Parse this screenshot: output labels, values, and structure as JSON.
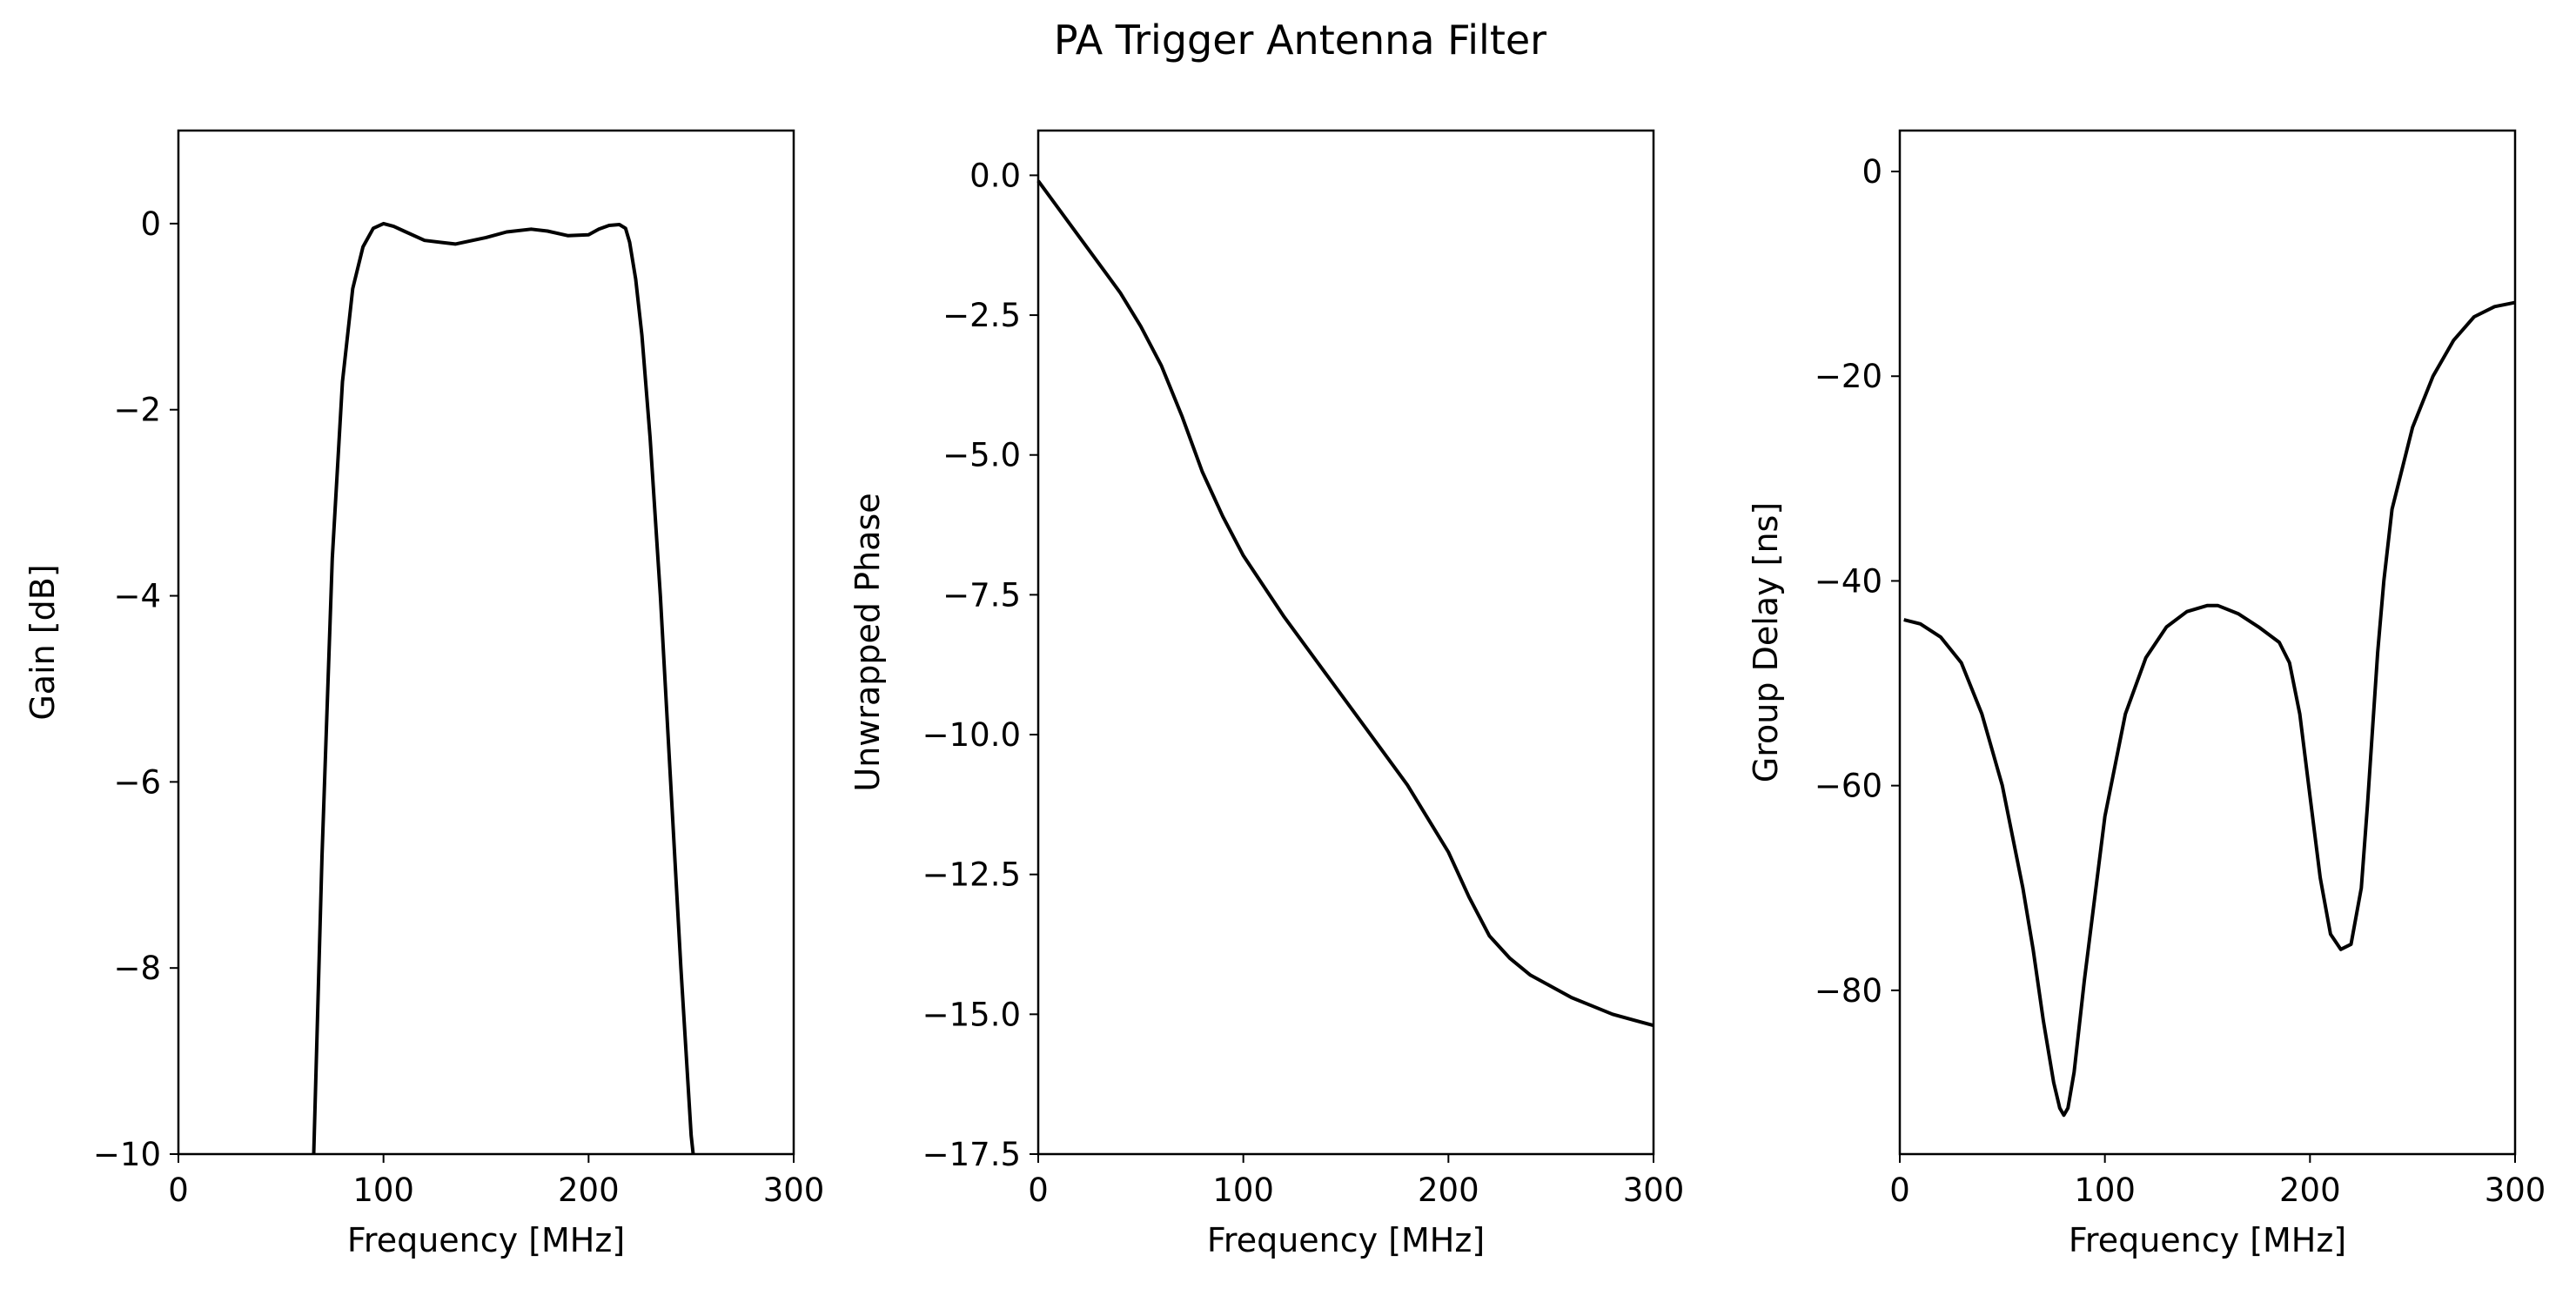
{
  "figure": {
    "title": "PA Trigger Antenna Filter"
  },
  "chart_data": [
    {
      "type": "line",
      "xlabel": "Frequency [MHz]",
      "ylabel": "Gain [dB]",
      "xlim": [
        0,
        300
      ],
      "ylim": [
        -10,
        1
      ],
      "xticks": [
        0,
        100,
        200,
        300
      ],
      "xtick_labels": [
        "0",
        "100",
        "200",
        "300"
      ],
      "yticks": [
        0,
        -2,
        -4,
        -6,
        -8,
        -10
      ],
      "ytick_labels": [
        "0",
        "−2",
        "−4",
        "−6",
        "−8",
        "−10"
      ],
      "grid": false,
      "series": [
        {
          "color": "#000000",
          "x": [
            66,
            70,
            75,
            80,
            85,
            90,
            95,
            100,
            105,
            110,
            120,
            135,
            150,
            160,
            172,
            180,
            190,
            200,
            205,
            210,
            215,
            218,
            220,
            223,
            226,
            230,
            235,
            240,
            245,
            250,
            251
          ],
          "y": [
            -10,
            -6.8,
            -3.6,
            -1.7,
            -0.7,
            -0.25,
            -0.05,
            0,
            -0.03,
            -0.08,
            -0.18,
            -0.22,
            -0.15,
            -0.09,
            -0.06,
            -0.08,
            -0.13,
            -0.12,
            -0.06,
            -0.02,
            -0.01,
            -0.05,
            -0.2,
            -0.6,
            -1.2,
            -2.3,
            -4.0,
            -6.0,
            -8.0,
            -9.8,
            -10
          ]
        }
      ]
    },
    {
      "type": "line",
      "xlabel": "Frequency [MHz]",
      "ylabel": "Unwrapped Phase",
      "xlim": [
        0,
        300
      ],
      "ylim": [
        -17.5,
        0.8
      ],
      "xticks": [
        0,
        100,
        200,
        300
      ],
      "xtick_labels": [
        "0",
        "100",
        "200",
        "300"
      ],
      "yticks": [
        0,
        -2.5,
        -5,
        -7.5,
        -10,
        -12.5,
        -15,
        -17.5
      ],
      "ytick_labels": [
        "0.0",
        "−2.5",
        "−5.0",
        "−7.5",
        "−10.0",
        "−12.5",
        "−15.0",
        "−17.5"
      ],
      "grid": false,
      "series": [
        {
          "color": "#000000",
          "x": [
            0,
            10,
            20,
            30,
            40,
            50,
            60,
            70,
            80,
            90,
            100,
            120,
            140,
            160,
            180,
            200,
            210,
            220,
            230,
            240,
            250,
            260,
            270,
            280,
            290,
            300
          ],
          "y": [
            -0.1,
            -0.6,
            -1.1,
            -1.6,
            -2.1,
            -2.7,
            -3.4,
            -4.3,
            -5.3,
            -6.1,
            -6.8,
            -7.9,
            -8.9,
            -9.9,
            -10.9,
            -12.1,
            -12.9,
            -13.6,
            -14.0,
            -14.3,
            -14.5,
            -14.7,
            -14.85,
            -15.0,
            -15.1,
            -15.2
          ]
        }
      ]
    },
    {
      "type": "line",
      "xlabel": "Frequency [MHz]",
      "ylabel": "Group Delay [ns]",
      "xlim": [
        0,
        300
      ],
      "ylim": [
        -96,
        4
      ],
      "xticks": [
        0,
        100,
        200,
        300
      ],
      "xtick_labels": [
        "0",
        "100",
        "200",
        "300"
      ],
      "yticks": [
        0,
        -20,
        -40,
        -60,
        -80
      ],
      "ytick_labels": [
        "0",
        "−20",
        "−40",
        "−60",
        "−80"
      ],
      "grid": false,
      "series": [
        {
          "color": "#000000",
          "x": [
            2,
            10,
            20,
            30,
            40,
            50,
            60,
            65,
            70,
            75,
            78,
            80,
            82,
            85,
            90,
            100,
            110,
            120,
            130,
            140,
            150,
            155,
            165,
            175,
            185,
            190,
            195,
            200,
            205,
            210,
            215,
            220,
            225,
            228,
            230,
            233,
            236,
            240,
            250,
            260,
            270,
            280,
            290,
            300
          ],
          "y": [
            -43.8,
            -44.2,
            -45.5,
            -48,
            -53,
            -60,
            -70,
            -76,
            -83,
            -89,
            -91.5,
            -92.2,
            -91.5,
            -88,
            -79,
            -63,
            -53,
            -47.5,
            -44.5,
            -43,
            -42.4,
            -42.4,
            -43.2,
            -44.5,
            -46,
            -48,
            -53,
            -61,
            -69,
            -74.5,
            -76,
            -75.5,
            -70,
            -62,
            -56,
            -47,
            -40,
            -33,
            -25,
            -20,
            -16.5,
            -14.2,
            -13.2,
            -12.8
          ]
        }
      ]
    }
  ]
}
